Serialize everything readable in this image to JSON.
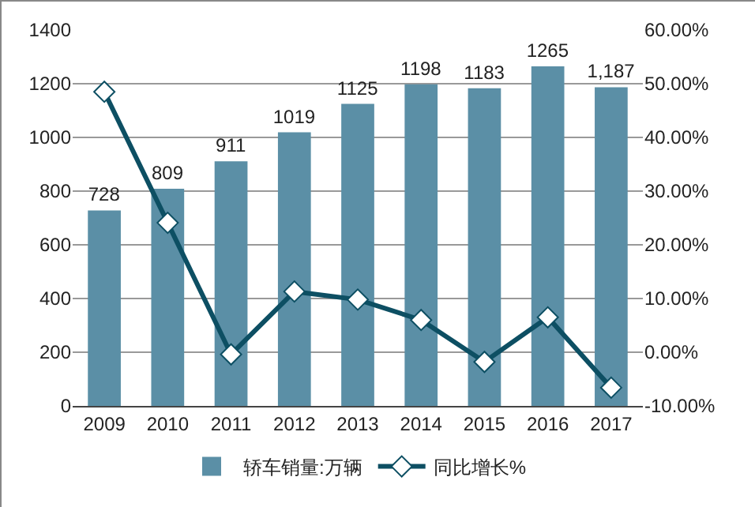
{
  "chart_data": {
    "type": "bar",
    "categories": [
      "2009",
      "2010",
      "2011",
      "2012",
      "2013",
      "2014",
      "2015",
      "2016",
      "2017"
    ],
    "series": [
      {
        "name": "轿车销量:万辆",
        "color": "#5b8fa6",
        "values": [
          728,
          809,
          911,
          1019,
          1125,
          1198,
          1183,
          1265,
          1187
        ],
        "value_labels": [
          "728",
          "809",
          "911",
          "1019",
          "1125",
          "1198",
          "1183",
          "1265",
          "1,187"
        ]
      },
      {
        "name": "同比增长%",
        "type": "line",
        "axis": "y2",
        "color": "#0d4f63",
        "marker": "diamond",
        "values": [
          48.5,
          24.1,
          -0.4,
          11.3,
          9.8,
          6.0,
          -1.8,
          6.5,
          -6.6
        ]
      }
    ],
    "ylim": [
      0,
      1400
    ],
    "yticks": [
      0,
      200,
      400,
      600,
      800,
      1000,
      1200,
      1400
    ],
    "y2lim": [
      -10,
      60
    ],
    "y2ticks": [
      {
        "value": -10,
        "label": "-10.00%"
      },
      {
        "value": 0,
        "label": "0.00%"
      },
      {
        "value": 10,
        "label": "10.00%"
      },
      {
        "value": 20,
        "label": "20.00%"
      },
      {
        "value": 30,
        "label": "30.00%"
      },
      {
        "value": 40,
        "label": "40.00%"
      },
      {
        "value": 50,
        "label": "50.00%"
      },
      {
        "value": 60,
        "label": "60.00%"
      }
    ],
    "grid": "y",
    "legend": "bottom"
  }
}
